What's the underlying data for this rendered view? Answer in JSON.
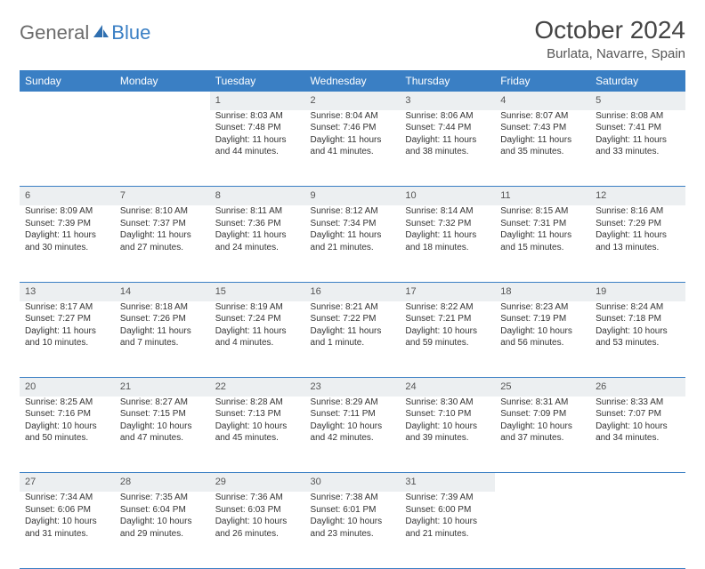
{
  "brand": {
    "part1": "General",
    "part2": "Blue"
  },
  "title": "October 2024",
  "location": "Burlata, Navarre, Spain",
  "colors": {
    "header_bg": "#3a7fc4",
    "header_text": "#ffffff",
    "daynum_bg": "#eceff1",
    "row_divider": "#3a7fc4",
    "body_text": "#333333",
    "title_text": "#444444"
  },
  "weekdays": [
    "Sunday",
    "Monday",
    "Tuesday",
    "Wednesday",
    "Thursday",
    "Friday",
    "Saturday"
  ],
  "weeks": [
    [
      null,
      null,
      {
        "num": "1",
        "sunrise": "Sunrise: 8:03 AM",
        "sunset": "Sunset: 7:48 PM",
        "daylight": "Daylight: 11 hours and 44 minutes."
      },
      {
        "num": "2",
        "sunrise": "Sunrise: 8:04 AM",
        "sunset": "Sunset: 7:46 PM",
        "daylight": "Daylight: 11 hours and 41 minutes."
      },
      {
        "num": "3",
        "sunrise": "Sunrise: 8:06 AM",
        "sunset": "Sunset: 7:44 PM",
        "daylight": "Daylight: 11 hours and 38 minutes."
      },
      {
        "num": "4",
        "sunrise": "Sunrise: 8:07 AM",
        "sunset": "Sunset: 7:43 PM",
        "daylight": "Daylight: 11 hours and 35 minutes."
      },
      {
        "num": "5",
        "sunrise": "Sunrise: 8:08 AM",
        "sunset": "Sunset: 7:41 PM",
        "daylight": "Daylight: 11 hours and 33 minutes."
      }
    ],
    [
      {
        "num": "6",
        "sunrise": "Sunrise: 8:09 AM",
        "sunset": "Sunset: 7:39 PM",
        "daylight": "Daylight: 11 hours and 30 minutes."
      },
      {
        "num": "7",
        "sunrise": "Sunrise: 8:10 AM",
        "sunset": "Sunset: 7:37 PM",
        "daylight": "Daylight: 11 hours and 27 minutes."
      },
      {
        "num": "8",
        "sunrise": "Sunrise: 8:11 AM",
        "sunset": "Sunset: 7:36 PM",
        "daylight": "Daylight: 11 hours and 24 minutes."
      },
      {
        "num": "9",
        "sunrise": "Sunrise: 8:12 AM",
        "sunset": "Sunset: 7:34 PM",
        "daylight": "Daylight: 11 hours and 21 minutes."
      },
      {
        "num": "10",
        "sunrise": "Sunrise: 8:14 AM",
        "sunset": "Sunset: 7:32 PM",
        "daylight": "Daylight: 11 hours and 18 minutes."
      },
      {
        "num": "11",
        "sunrise": "Sunrise: 8:15 AM",
        "sunset": "Sunset: 7:31 PM",
        "daylight": "Daylight: 11 hours and 15 minutes."
      },
      {
        "num": "12",
        "sunrise": "Sunrise: 8:16 AM",
        "sunset": "Sunset: 7:29 PM",
        "daylight": "Daylight: 11 hours and 13 minutes."
      }
    ],
    [
      {
        "num": "13",
        "sunrise": "Sunrise: 8:17 AM",
        "sunset": "Sunset: 7:27 PM",
        "daylight": "Daylight: 11 hours and 10 minutes."
      },
      {
        "num": "14",
        "sunrise": "Sunrise: 8:18 AM",
        "sunset": "Sunset: 7:26 PM",
        "daylight": "Daylight: 11 hours and 7 minutes."
      },
      {
        "num": "15",
        "sunrise": "Sunrise: 8:19 AM",
        "sunset": "Sunset: 7:24 PM",
        "daylight": "Daylight: 11 hours and 4 minutes."
      },
      {
        "num": "16",
        "sunrise": "Sunrise: 8:21 AM",
        "sunset": "Sunset: 7:22 PM",
        "daylight": "Daylight: 11 hours and 1 minute."
      },
      {
        "num": "17",
        "sunrise": "Sunrise: 8:22 AM",
        "sunset": "Sunset: 7:21 PM",
        "daylight": "Daylight: 10 hours and 59 minutes."
      },
      {
        "num": "18",
        "sunrise": "Sunrise: 8:23 AM",
        "sunset": "Sunset: 7:19 PM",
        "daylight": "Daylight: 10 hours and 56 minutes."
      },
      {
        "num": "19",
        "sunrise": "Sunrise: 8:24 AM",
        "sunset": "Sunset: 7:18 PM",
        "daylight": "Daylight: 10 hours and 53 minutes."
      }
    ],
    [
      {
        "num": "20",
        "sunrise": "Sunrise: 8:25 AM",
        "sunset": "Sunset: 7:16 PM",
        "daylight": "Daylight: 10 hours and 50 minutes."
      },
      {
        "num": "21",
        "sunrise": "Sunrise: 8:27 AM",
        "sunset": "Sunset: 7:15 PM",
        "daylight": "Daylight: 10 hours and 47 minutes."
      },
      {
        "num": "22",
        "sunrise": "Sunrise: 8:28 AM",
        "sunset": "Sunset: 7:13 PM",
        "daylight": "Daylight: 10 hours and 45 minutes."
      },
      {
        "num": "23",
        "sunrise": "Sunrise: 8:29 AM",
        "sunset": "Sunset: 7:11 PM",
        "daylight": "Daylight: 10 hours and 42 minutes."
      },
      {
        "num": "24",
        "sunrise": "Sunrise: 8:30 AM",
        "sunset": "Sunset: 7:10 PM",
        "daylight": "Daylight: 10 hours and 39 minutes."
      },
      {
        "num": "25",
        "sunrise": "Sunrise: 8:31 AM",
        "sunset": "Sunset: 7:09 PM",
        "daylight": "Daylight: 10 hours and 37 minutes."
      },
      {
        "num": "26",
        "sunrise": "Sunrise: 8:33 AM",
        "sunset": "Sunset: 7:07 PM",
        "daylight": "Daylight: 10 hours and 34 minutes."
      }
    ],
    [
      {
        "num": "27",
        "sunrise": "Sunrise: 7:34 AM",
        "sunset": "Sunset: 6:06 PM",
        "daylight": "Daylight: 10 hours and 31 minutes."
      },
      {
        "num": "28",
        "sunrise": "Sunrise: 7:35 AM",
        "sunset": "Sunset: 6:04 PM",
        "daylight": "Daylight: 10 hours and 29 minutes."
      },
      {
        "num": "29",
        "sunrise": "Sunrise: 7:36 AM",
        "sunset": "Sunset: 6:03 PM",
        "daylight": "Daylight: 10 hours and 26 minutes."
      },
      {
        "num": "30",
        "sunrise": "Sunrise: 7:38 AM",
        "sunset": "Sunset: 6:01 PM",
        "daylight": "Daylight: 10 hours and 23 minutes."
      },
      {
        "num": "31",
        "sunrise": "Sunrise: 7:39 AM",
        "sunset": "Sunset: 6:00 PM",
        "daylight": "Daylight: 10 hours and 21 minutes."
      },
      null,
      null
    ]
  ]
}
